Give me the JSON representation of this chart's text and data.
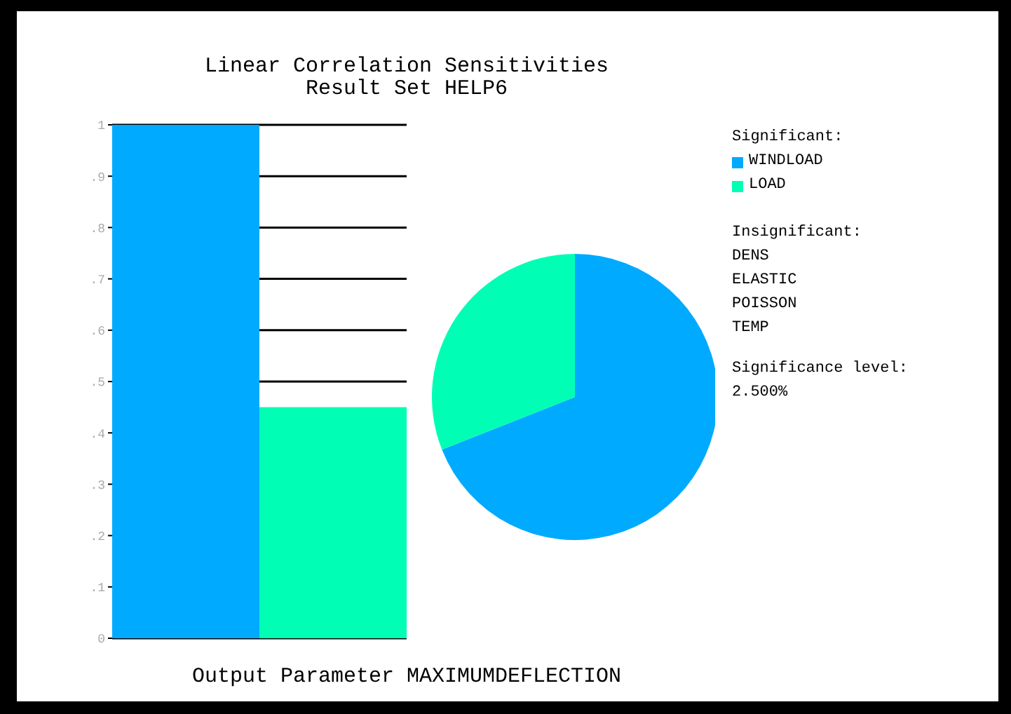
{
  "chart_data": [
    {
      "type": "bar",
      "title": "Linear Correlation Sensitivities",
      "subtitle": "Result Set HELP6",
      "xlabel": "Output Parameter MAXIMUMDEFLECTION",
      "categories": [
        null,
        null
      ],
      "values": [
        1,
        0.45
      ],
      "colors": [
        "#00aaff",
        "#00ffb4"
      ],
      "ylim": [
        0,
        1
      ],
      "yticks": [
        0,
        {
          "value": 0.1,
          "label": ".1"
        },
        {
          "value": 0.2,
          "label": ".2"
        },
        {
          "value": 0.3,
          "label": ".3"
        },
        {
          "value": 0.4,
          "label": ".4"
        },
        {
          "value": 0.5,
          "label": ".5"
        },
        {
          "value": 0.6,
          "label": ".6"
        },
        {
          "value": 0.7,
          "label": ".7"
        },
        {
          "value": 0.8,
          "label": ".8"
        },
        {
          "value": 0.9,
          "label": ".9"
        },
        1
      ],
      "grid": "y"
    },
    {
      "type": "pie",
      "categories": [
        "WINDLOAD",
        "LOAD"
      ],
      "values": [
        69,
        31
      ],
      "colors": [
        "#00aaff",
        "#00ffb4"
      ],
      "legend": "right",
      "legend_title": "Significant:",
      "annotations": [
        "Insignificant:",
        "DENS",
        "ELASTIC",
        "POISSON",
        "TEMP",
        "Significance level:",
        "2.500%"
      ]
    }
  ]
}
